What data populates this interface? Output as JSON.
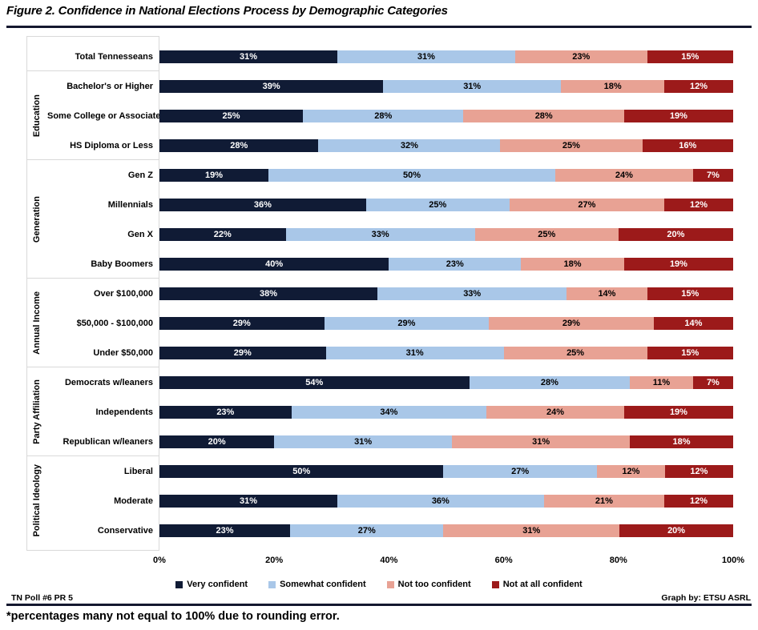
{
  "title": "Figure 2. Confidence in National Elections Process by Demographic Categories",
  "footer_left": "TN Poll #6 PR 5",
  "footer_right": "Graph by: ETSU ASRL",
  "footnote": "*percentages many not equal to 100% due to rounding error.",
  "colors": {
    "rule": "#14182F",
    "separator": "#D9D9D9",
    "very_confident": "#101B35",
    "somewhat_confident": "#A9C7E8",
    "not_too_confident": "#E8A294",
    "not_at_all_confident": "#9C1A1A"
  },
  "chart_data": {
    "type": "bar",
    "stacked": true,
    "orientation": "horizontal",
    "title": "Figure 2. Confidence in National Elections Process by Demographic Categories",
    "xlabel": "",
    "ylabel": "",
    "xlim": [
      0,
      100
    ],
    "x_ticks": [
      "0%",
      "20%",
      "40%",
      "60%",
      "80%",
      "100%"
    ],
    "legend_position": "bottom",
    "series": [
      {
        "name": "Very confident",
        "color": "#101B35",
        "text_color": "#FFFFFF"
      },
      {
        "name": "Somewhat confident",
        "color": "#A9C7E8",
        "text_color": "#000000"
      },
      {
        "name": "Not too confident",
        "color": "#E8A294",
        "text_color": "#000000"
      },
      {
        "name": "Not at all confident",
        "color": "#9C1A1A",
        "text_color": "#FFFFFF"
      }
    ],
    "groups": [
      {
        "name": "",
        "rows": [
          {
            "label": "Total Tennesseans",
            "values": [
              31,
              31,
              23,
              15
            ]
          }
        ]
      },
      {
        "name": "Education",
        "rows": [
          {
            "label": "Bachelor's or Higher",
            "values": [
              39,
              31,
              18,
              12
            ]
          },
          {
            "label": "Some College or Associate",
            "values": [
              25,
              28,
              28,
              19
            ]
          },
          {
            "label": "HS Diploma or Less",
            "values": [
              28,
              32,
              25,
              16
            ]
          }
        ]
      },
      {
        "name": "Generation",
        "rows": [
          {
            "label": "Gen Z",
            "values": [
              19,
              50,
              24,
              7
            ]
          },
          {
            "label": "Millennials",
            "values": [
              36,
              25,
              27,
              12
            ]
          },
          {
            "label": "Gen X",
            "values": [
              22,
              33,
              25,
              20
            ]
          },
          {
            "label": "Baby Boomers",
            "values": [
              40,
              23,
              18,
              19
            ]
          }
        ]
      },
      {
        "name": "Annual Income",
        "rows": [
          {
            "label": "Over $100,000",
            "values": [
              38,
              33,
              14,
              15
            ]
          },
          {
            "label": "$50,000 - $100,000",
            "values": [
              29,
              29,
              29,
              14
            ]
          },
          {
            "label": "Under $50,000",
            "values": [
              29,
              31,
              25,
              15
            ]
          }
        ]
      },
      {
        "name": "Party Affiliation",
        "rows": [
          {
            "label": "Democrats w/leaners",
            "values": [
              54,
              28,
              11,
              7
            ]
          },
          {
            "label": "Independents",
            "values": [
              23,
              34,
              24,
              19
            ]
          },
          {
            "label": "Republican w/leaners",
            "values": [
              20,
              31,
              31,
              18
            ]
          }
        ]
      },
      {
        "name": "Political Ideology",
        "rows": [
          {
            "label": "Liberal",
            "values": [
              50,
              27,
              12,
              12
            ]
          },
          {
            "label": "Moderate",
            "values": [
              31,
              36,
              21,
              12
            ]
          },
          {
            "label": "Conservative",
            "values": [
              23,
              27,
              31,
              20
            ]
          }
        ]
      }
    ]
  }
}
